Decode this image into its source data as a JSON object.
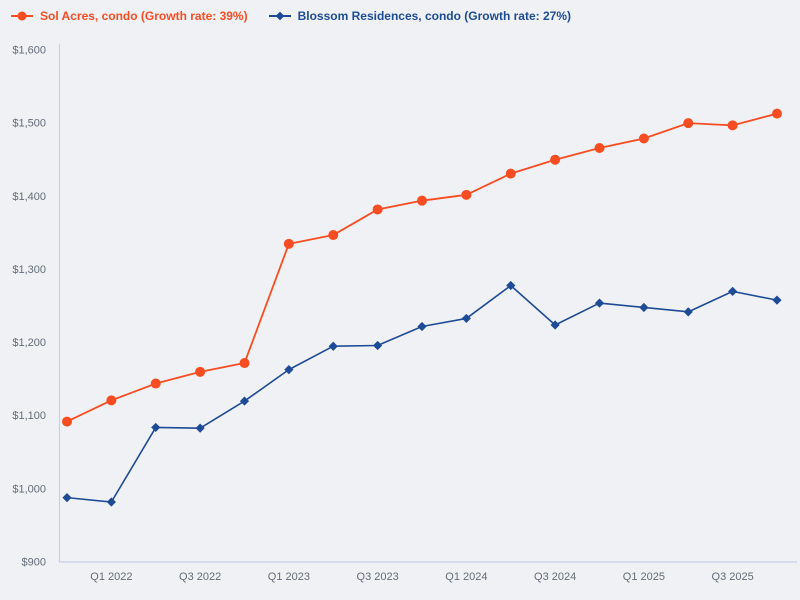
{
  "colors": {
    "background": "#eff1f4",
    "axis_line": "#c5d1e8",
    "tick_text": "#626c7a",
    "series_orange": "#f84c22",
    "series_blue": "#1e4b96"
  },
  "legend": {
    "items": [
      {
        "label": "Sol Acres, condo (Growth rate: 39%)",
        "color": "#f84c22",
        "marker": "circle"
      },
      {
        "label": "Blossom Residences, condo (Growth rate: 27%)",
        "color": "#1e4b96",
        "marker": "diamond"
      }
    ]
  },
  "chart_data": {
    "type": "line",
    "title": "",
    "xlabel": "",
    "ylabel": "",
    "x": [
      "Q4 2021",
      "Q1 2022",
      "Q2 2022",
      "Q3 2022",
      "Q4 2022",
      "Q1 2023",
      "Q2 2023",
      "Q3 2023",
      "Q4 2023",
      "Q1 2024",
      "Q2 2024",
      "Q3 2024",
      "Q4 2024",
      "Q1 2025",
      "Q2 2025",
      "Q3 2025",
      "Q4 2025"
    ],
    "x_tick_indices": [
      1,
      3,
      5,
      7,
      9,
      11,
      13,
      15
    ],
    "x_tick_labels": [
      "Q1 2022",
      "Q3 2022",
      "Q1 2023",
      "Q3 2023",
      "Q1 2024",
      "Q3 2024",
      "Q1 2025",
      "Q3 2025"
    ],
    "series": [
      {
        "name": "Sol Acres, condo",
        "growth_rate": "39%",
        "color": "#f84c22",
        "marker": "circle",
        "values": [
          1092,
          1121,
          1144,
          1160,
          1172,
          1335,
          1347,
          1382,
          1394,
          1402,
          1431,
          1450,
          1466,
          1479,
          1500,
          1497,
          1513
        ]
      },
      {
        "name": "Blossom Residences, condo",
        "growth_rate": "27%",
        "color": "#1e4b96",
        "marker": "diamond",
        "values": [
          988,
          982,
          1084,
          1083,
          1120,
          1163,
          1195,
          1196,
          1222,
          1233,
          1278,
          1224,
          1254,
          1248,
          1242,
          1270,
          1258
        ]
      }
    ],
    "ylim": [
      900,
      1600
    ],
    "ytick_step": 100,
    "y_tick_labels": [
      "$900",
      "$1,000",
      "$1,100",
      "$1,200",
      "$1,300",
      "$1,400",
      "$1,500",
      "$1,600"
    ],
    "currency_prefix": "$",
    "grid": false,
    "legend_position": "top-left"
  }
}
